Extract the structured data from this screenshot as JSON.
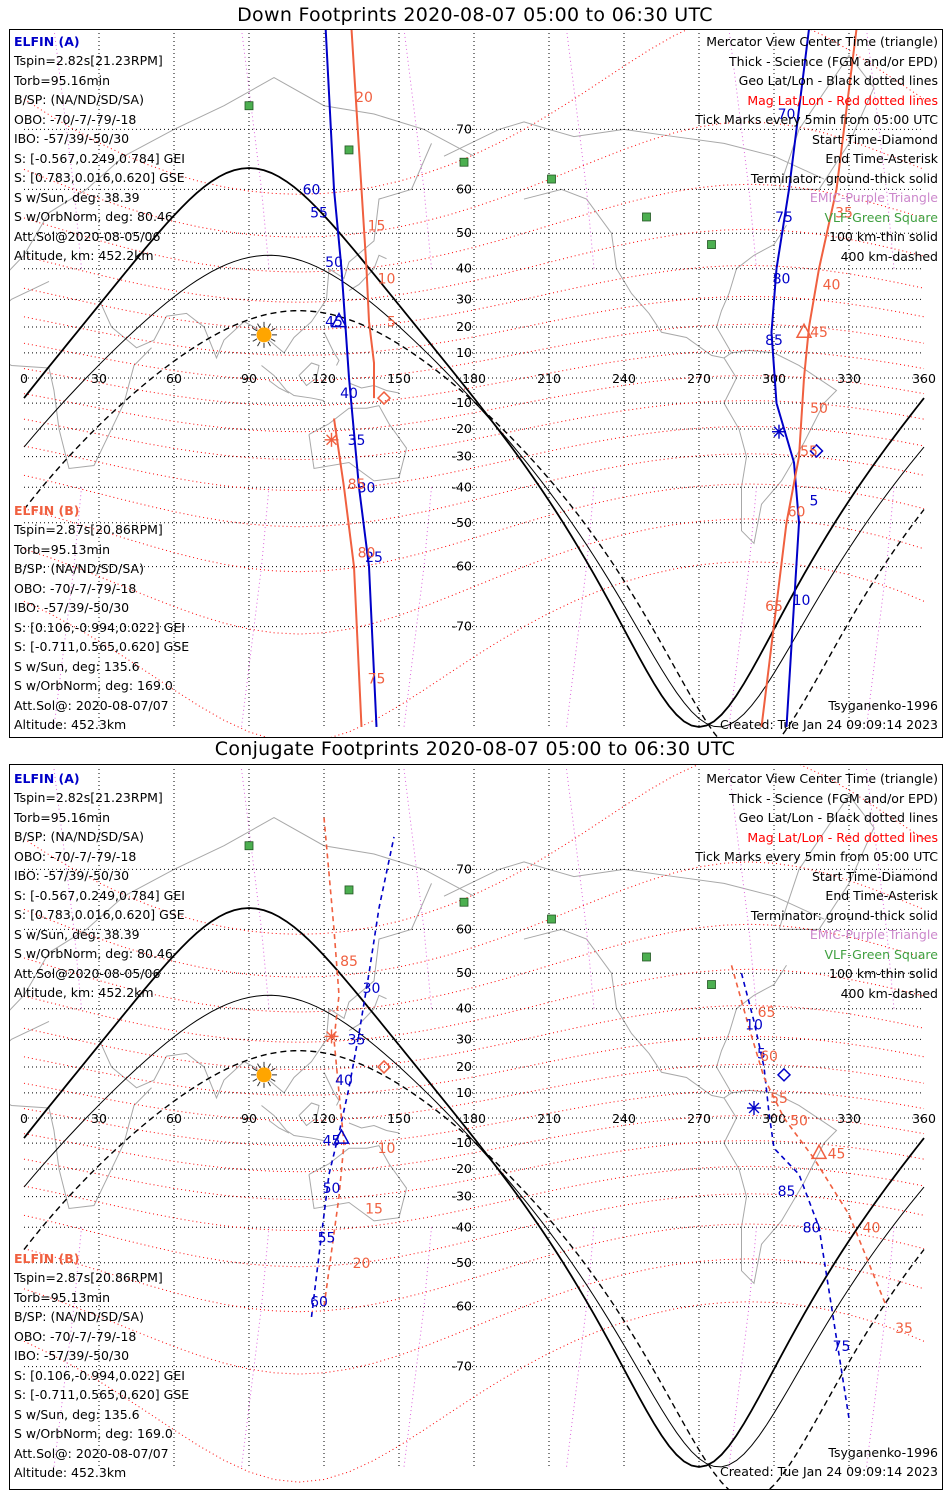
{
  "panels": [
    {
      "title": "Down Footprints 2020-08-07 05:00 to 06:30 UTC",
      "probe_a": {
        "name": "ELFIN (A)",
        "lines": [
          "Tspin=2.82s[21.23RPM]",
          "Torb=95.16min",
          "B/SP: (NA/ND/SD/SA)",
          "OBO: -70/-7/-79/-18",
          "IBO: -57/39/-50/30",
          "S: [-0.567,0.249,0.784] GEI",
          "S: [0.783,0.016,0.620] GSE",
          "S w/Sun, deg: 38.39",
          "S w/OrbNorm, deg: 80.46",
          "Att.Sol@2020-08-05/06",
          "Altitude, km: 452.2km"
        ]
      },
      "probe_b": {
        "name": "ELFIN (B)",
        "lines": [
          "Tspin=2.87s[20.86RPM]",
          "Torb=95.13min",
          "B/SP: (NA/ND/SD/SA)",
          "OBO: -70/-7/-79/-18",
          "IBO: -57/39/-50/30",
          "S: [0.106,-0.994,0.022] GEI",
          "S: [-0.711,0.565,0.620] GSE",
          "S w/Sun, deg: 135.6",
          "S w/OrbNorm, deg: 169.0",
          "Att.Sol@: 2020-08-07/07",
          "Altitude: 452.3km"
        ]
      },
      "legend": [
        "Mercator View Center Time (triangle)",
        "Thick - Science (FGM and/or EPD)",
        "Geo Lat/Lon - Black dotted lines",
        "Mag Lat/Lon - Red dotted lines",
        "Tick Marks every 5min from 05:00 UTC",
        "Start Time-Diamond",
        "End Time-Asterisk",
        "Terminator: ground-thick solid",
        "EMIC-Purple Triangle",
        "VLF-Green Square",
        "100 km-thin solid",
        "400 km-dashed"
      ],
      "model": "Tsyganenko-1996",
      "created": "Created: Tue Jan 24 09:09:14 2023",
      "lon_labels": [
        "0",
        "30",
        "60",
        "90",
        "120",
        "150",
        "180",
        "210",
        "240",
        "270",
        "300",
        "330",
        "360"
      ],
      "lat_labels": [
        "70",
        "60",
        "50",
        "40",
        "30",
        "20",
        "10",
        "-10",
        "-20",
        "-30",
        "-40",
        "-50",
        "-60",
        "-70"
      ],
      "track_labels": [
        {
          "text": "60",
          "lon": 115,
          "lat": 60,
          "color": "#0000c8"
        },
        {
          "text": "55",
          "lon": 118,
          "lat": 55,
          "color": "#0000c8"
        },
        {
          "text": "50",
          "lon": 124,
          "lat": 42,
          "color": "#0000c8"
        },
        {
          "text": "45",
          "lon": 124,
          "lat": 22,
          "color": "#0000c8"
        },
        {
          "text": "40",
          "lon": 130,
          "lat": -6,
          "color": "#0000c8"
        },
        {
          "text": "35",
          "lon": 133,
          "lat": -24,
          "color": "#0000c8"
        },
        {
          "text": "30",
          "lon": 137,
          "lat": -40,
          "color": "#0000c8"
        },
        {
          "text": "25",
          "lon": 140,
          "lat": -58,
          "color": "#0000c8"
        },
        {
          "text": "70",
          "lon": 305,
          "lat": 72,
          "color": "#0000c8"
        },
        {
          "text": "75",
          "lon": 304,
          "lat": 54,
          "color": "#0000c8"
        },
        {
          "text": "80",
          "lon": 303,
          "lat": 37,
          "color": "#0000c8"
        },
        {
          "text": "85",
          "lon": 300,
          "lat": 15,
          "color": "#0000c8"
        },
        {
          "text": "5",
          "lon": 316,
          "lat": -44,
          "color": "#0000c8"
        },
        {
          "text": "10",
          "lon": 311,
          "lat": -66,
          "color": "#0000c8"
        },
        {
          "text": "20",
          "lon": 136,
          "lat": 74,
          "color": "#f06040"
        },
        {
          "text": "15",
          "lon": 141,
          "lat": 52,
          "color": "#f06040"
        },
        {
          "text": "10",
          "lon": 145,
          "lat": 37,
          "color": "#f06040"
        },
        {
          "text": "5",
          "lon": 147,
          "lat": 22,
          "color": "#f06040"
        },
        {
          "text": "85",
          "lon": 133,
          "lat": -39,
          "color": "#f06040"
        },
        {
          "text": "80",
          "lon": 137,
          "lat": -57,
          "color": "#f06040"
        },
        {
          "text": "75",
          "lon": 141,
          "lat": -76,
          "color": "#f06040"
        },
        {
          "text": "35",
          "lon": 328,
          "lat": 55,
          "color": "#f06040"
        },
        {
          "text": "40",
          "lon": 323,
          "lat": 35,
          "color": "#f06040"
        },
        {
          "text": "45",
          "lon": 318,
          "lat": 18,
          "color": "#f06040"
        },
        {
          "text": "50",
          "lon": 318,
          "lat": -12,
          "color": "#f06040"
        },
        {
          "text": "55",
          "lon": 314,
          "lat": -28,
          "color": "#f06040"
        },
        {
          "text": "60",
          "lon": 309,
          "lat": -47,
          "color": "#f06040"
        },
        {
          "text": "65",
          "lon": 300,
          "lat": -67,
          "color": "#f06040"
        }
      ]
    },
    {
      "title": "Conjugate Footprints 2020-08-07 05:00 to 06:30 UTC",
      "probe_a": {
        "name": "ELFIN (A)",
        "lines": [
          "Tspin=2.82s[21.23RPM]",
          "Torb=95.16min",
          "B/SP: (NA/ND/SD/SA)",
          "OBO: -70/-7/-79/-18",
          "IBO: -57/39/-50/30",
          "S: [-0.567,0.249,0.784] GEI",
          "S: [0.783,0.016,0.620] GSE",
          "S w/Sun, deg: 38.39",
          "S w/OrbNorm, deg: 80.46",
          "Att.Sol@2020-08-05/06",
          "Altitude, km: 452.2km"
        ]
      },
      "probe_b": {
        "name": "ELFIN (B)",
        "lines": [
          "Tspin=2.87s[20.86RPM]",
          "Torb=95.13min",
          "B/SP: (NA/ND/SD/SA)",
          "OBO: -70/-7/-79/-18",
          "IBO: -57/39/-50/30",
          "S: [0.106,-0.994,0.022] GEI",
          "S: [-0.711,0.565,0.620] GSE",
          "S w/Sun, deg: 135.6",
          "S w/OrbNorm, deg: 169.0",
          "Att.Sol@: 2020-08-07/07",
          "Altitude: 452.3km"
        ]
      },
      "legend": [
        "Mercator View Center Time (triangle)",
        "Thick - Science (FGM and/or EPD)",
        "Geo Lat/Lon - Black dotted lines",
        "Mag Lat/Lon - Red dotted lines",
        "Tick Marks every 5min from 05:00 UTC",
        "Start Time-Diamond",
        "End Time-Asterisk",
        "Terminator: ground-thick solid",
        "EMIC-Purple Triangle",
        "VLF-Green Square",
        "100 km-thin solid",
        "400 km-dashed"
      ],
      "model": "Tsyganenko-1996",
      "created": "Created: Tue Jan 24 09:09:14 2023",
      "lon_labels": [
        "0",
        "30",
        "60",
        "90",
        "120",
        "150",
        "180",
        "210",
        "240",
        "270",
        "300",
        "330",
        "360"
      ],
      "lat_labels": [
        "70",
        "60",
        "50",
        "40",
        "30",
        "20",
        "10",
        "-10",
        "-20",
        "-30",
        "-40",
        "-50",
        "-60",
        "-70"
      ],
      "track_labels": [
        {
          "text": "30",
          "lon": 139,
          "lat": 46,
          "color": "#0000c8"
        },
        {
          "text": "35",
          "lon": 133,
          "lat": 30,
          "color": "#0000c8"
        },
        {
          "text": "40",
          "lon": 128,
          "lat": 15,
          "color": "#0000c8"
        },
        {
          "text": "45",
          "lon": 123,
          "lat": -9,
          "color": "#0000c8"
        },
        {
          "text": "50",
          "lon": 123,
          "lat": -27,
          "color": "#0000c8"
        },
        {
          "text": "55",
          "lon": 121,
          "lat": -43,
          "color": "#0000c8"
        },
        {
          "text": "60",
          "lon": 118,
          "lat": -59,
          "color": "#0000c8"
        },
        {
          "text": "10",
          "lon": 292,
          "lat": 35,
          "color": "#0000c8"
        },
        {
          "text": "5",
          "lon": 295,
          "lat": 25,
          "color": "#0000c8"
        },
        {
          "text": "85",
          "lon": 305,
          "lat": -28,
          "color": "#0000c8"
        },
        {
          "text": "80",
          "lon": 315,
          "lat": -40,
          "color": "#0000c8"
        },
        {
          "text": "75",
          "lon": 327,
          "lat": -67,
          "color": "#0000c8"
        },
        {
          "text": "85",
          "lon": 130,
          "lat": 53,
          "color": "#f06040"
        },
        {
          "text": "10",
          "lon": 145,
          "lat": -12,
          "color": "#f06040"
        },
        {
          "text": "15",
          "lon": 140,
          "lat": -34,
          "color": "#f06040"
        },
        {
          "text": "20",
          "lon": 135,
          "lat": -50,
          "color": "#f06040"
        },
        {
          "text": "65",
          "lon": 297,
          "lat": 39,
          "color": "#f06040"
        },
        {
          "text": "60",
          "lon": 298,
          "lat": 24,
          "color": "#f06040"
        },
        {
          "text": "55",
          "lon": 302,
          "lat": 8,
          "color": "#f06040"
        },
        {
          "text": "50",
          "lon": 310,
          "lat": -1,
          "color": "#f06040"
        },
        {
          "text": "45",
          "lon": 325,
          "lat": -14,
          "color": "#f06040"
        },
        {
          "text": "40",
          "lon": 339,
          "lat": -40,
          "color": "#f06040"
        },
        {
          "text": "35",
          "lon": 352,
          "lat": -64,
          "color": "#f06040"
        }
      ]
    }
  ],
  "colors": {
    "probe_a": "#0000c8",
    "probe_b": "#f06040",
    "sun": "#ffa500",
    "vlf": "#4caf50",
    "terminator": "#000000",
    "mag_grid": "#ff0000",
    "geo_grid": "#000000",
    "emic": "#cc66cc"
  },
  "vlf_stations": [
    {
      "lon": 90,
      "lat": 73
    },
    {
      "lon": 130,
      "lat": 67
    },
    {
      "lon": 176,
      "lat": 65
    },
    {
      "lon": 211,
      "lat": 62
    },
    {
      "lon": 249,
      "lat": 54
    },
    {
      "lon": 275,
      "lat": 47
    }
  ],
  "sun": {
    "lon": 96,
    "lat": 17,
    "icon": "sun-icon"
  },
  "map_extent": {
    "lon_range": [
      0,
      360
    ],
    "lat_range": [
      -80,
      80
    ],
    "projection": "Mercator"
  },
  "down_tracks": [
    {
      "probe": "A",
      "science": true,
      "points": [
        [
          120,
          82
        ],
        [
          124,
          60
        ],
        [
          127,
          40
        ],
        [
          130,
          0
        ],
        [
          134,
          -40
        ],
        [
          138,
          -60
        ],
        [
          141,
          -80
        ]
      ]
    },
    {
      "probe": "A",
      "science": true,
      "points": [
        [
          314,
          80
        ],
        [
          306,
          60
        ],
        [
          301,
          40
        ],
        [
          299,
          18
        ],
        [
          301,
          -10
        ],
        [
          308,
          -32
        ],
        [
          310,
          -50
        ],
        [
          305,
          -80
        ]
      ]
    },
    {
      "probe": "B",
      "science": true,
      "points": [
        [
          131,
          80
        ],
        [
          135,
          60
        ],
        [
          137,
          40
        ],
        [
          138,
          22
        ],
        [
          140,
          6
        ],
        [
          140,
          -8
        ]
      ]
    },
    {
      "probe": "B",
      "science": true,
      "points": [
        [
          124,
          -16
        ],
        [
          128,
          -40
        ],
        [
          132,
          -60
        ],
        [
          135,
          -80
        ]
      ]
    },
    {
      "probe": "B",
      "science": true,
      "points": [
        [
          333,
          80
        ],
        [
          325,
          60
        ],
        [
          318,
          40
        ],
        [
          314,
          20
        ],
        [
          312,
          0
        ],
        [
          310,
          -30
        ],
        [
          305,
          -50
        ],
        [
          295,
          -80
        ]
      ]
    }
  ],
  "down_markers": [
    {
      "kind": "triangle",
      "probe": "A",
      "lon": 126,
      "lat": 22
    },
    {
      "kind": "triangle",
      "probe": "B",
      "lon": 312,
      "lat": 18
    },
    {
      "kind": "diamond",
      "probe": "B",
      "lon": 144,
      "lat": -8
    },
    {
      "kind": "diamond",
      "probe": "A",
      "lon": 317,
      "lat": -28
    },
    {
      "kind": "asterisk",
      "probe": "B",
      "lon": 123,
      "lat": -24
    },
    {
      "kind": "asterisk",
      "probe": "A",
      "lon": 302,
      "lat": -21
    }
  ],
  "conj_tracks": [
    {
      "probe": "A",
      "science": false,
      "points": [
        [
          115,
          -62
        ],
        [
          118,
          -48
        ],
        [
          122,
          -22
        ],
        [
          126,
          -6
        ],
        [
          130,
          12
        ],
        [
          134,
          32
        ],
        [
          138,
          50
        ],
        [
          142,
          64
        ],
        [
          148,
          74
        ]
      ]
    },
    {
      "probe": "A",
      "science": false,
      "points": [
        [
          287,
          50
        ],
        [
          292,
          36
        ],
        [
          296,
          20
        ],
        [
          298,
          2
        ],
        [
          300,
          -12
        ],
        [
          310,
          -22
        ],
        [
          318,
          -40
        ],
        [
          323,
          -60
        ],
        [
          330,
          -76
        ]
      ]
    },
    {
      "probe": "B",
      "science": false,
      "points": [
        [
          120,
          76
        ],
        [
          124,
          60
        ],
        [
          126,
          44
        ],
        [
          124,
          30
        ],
        [
          126,
          10
        ],
        [
          128,
          -10
        ],
        [
          126,
          -30
        ],
        [
          120,
          -60
        ]
      ]
    },
    {
      "probe": "B",
      "science": false,
      "points": [
        [
          283,
          52
        ],
        [
          290,
          34
        ],
        [
          296,
          16
        ],
        [
          304,
          0
        ],
        [
          316,
          -16
        ],
        [
          330,
          -36
        ],
        [
          345,
          -60
        ]
      ]
    }
  ],
  "conj_markers": [
    {
      "kind": "triangle",
      "probe": "A",
      "lon": 127,
      "lat": -8
    },
    {
      "kind": "triangle",
      "probe": "B",
      "lon": 318,
      "lat": -14
    },
    {
      "kind": "diamond",
      "probe": "B",
      "lon": 144,
      "lat": 20
    },
    {
      "kind": "diamond",
      "probe": "A",
      "lon": 304,
      "lat": 17
    },
    {
      "kind": "asterisk",
      "probe": "B",
      "lon": 123,
      "lat": 31
    },
    {
      "kind": "asterisk",
      "probe": "A",
      "lon": 292,
      "lat": 4
    }
  ]
}
